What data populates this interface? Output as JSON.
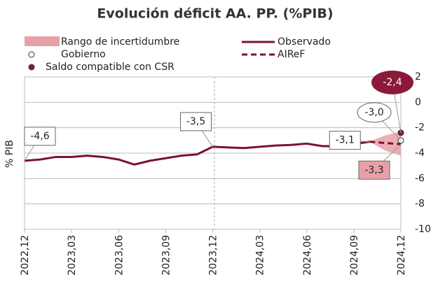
{
  "chart_data": {
    "type": "line",
    "title": "Evolución déficit AA. PP. (%PIB)",
    "ylabel": "% PIB",
    "categories": [
      "2022,12",
      null,
      null,
      "2023,03",
      null,
      null,
      "2023,06",
      null,
      null,
      "2023,09",
      null,
      null,
      "2023,12",
      null,
      null,
      "2024,03",
      null,
      null,
      "2024,06",
      null,
      null,
      "2024,09",
      null,
      null,
      "2024,12"
    ],
    "ylim": [
      -10,
      2
    ],
    "yticks": [
      2,
      0,
      -2,
      -4,
      -6,
      -8,
      -10
    ],
    "band": {
      "name": "Rango de incertidumbre",
      "color": "#e8a0a8",
      "low": [
        null,
        null,
        null,
        null,
        null,
        null,
        null,
        null,
        null,
        null,
        null,
        null,
        null,
        null,
        null,
        null,
        null,
        null,
        null,
        null,
        null,
        null,
        -3.1,
        -3.8,
        -4.2
      ],
      "high": [
        null,
        null,
        null,
        null,
        null,
        null,
        null,
        null,
        null,
        null,
        null,
        null,
        null,
        null,
        null,
        null,
        null,
        null,
        null,
        null,
        null,
        null,
        -3.1,
        -2.6,
        -2.3
      ]
    },
    "series": [
      {
        "name": "Observado",
        "color": "#7b1230",
        "dash": false,
        "values": [
          -4.6,
          -4.5,
          -4.3,
          -4.3,
          -4.2,
          -4.3,
          -4.5,
          -4.9,
          -4.6,
          -4.4,
          -4.2,
          -4.1,
          -3.5,
          -3.55,
          -3.6,
          -3.5,
          -3.4,
          -3.35,
          -3.25,
          -3.45,
          -3.45,
          -3.3,
          -3.1,
          null,
          null
        ],
        "value_labels": [
          "-4,6",
          null,
          null,
          null,
          null,
          null,
          null,
          null,
          null,
          null,
          null,
          null,
          "-3,5",
          null,
          null,
          null,
          null,
          null,
          null,
          null,
          null,
          null,
          "-3,1",
          null,
          null
        ]
      },
      {
        "name": "AIReF",
        "color": "#7b1230",
        "dash": true,
        "values": [
          null,
          null,
          null,
          null,
          null,
          null,
          null,
          null,
          null,
          null,
          null,
          null,
          null,
          null,
          null,
          null,
          null,
          null,
          null,
          null,
          null,
          null,
          -3.1,
          -3.2,
          -3.3
        ],
        "value_labels": [
          null,
          null,
          null,
          null,
          null,
          null,
          null,
          null,
          null,
          null,
          null,
          null,
          null,
          null,
          null,
          null,
          null,
          null,
          null,
          null,
          null,
          null,
          null,
          null,
          "-3,3"
        ]
      }
    ],
    "points": [
      {
        "name": "Gobierno",
        "color": "#ffffff",
        "index": 24,
        "value": -3.0,
        "value_label": "-3,0"
      },
      {
        "name": "Saldo compatible con CSR",
        "color": "#8b1a3a",
        "index": 24,
        "value": -2.4,
        "value_label": "-2,4"
      }
    ]
  }
}
